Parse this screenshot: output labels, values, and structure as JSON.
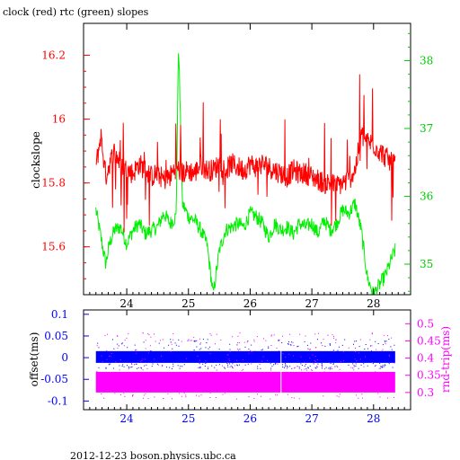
{
  "title": "clock (red) rtc (green) slopes",
  "footer": "2012-12-23 boson.physics.ubc.ca",
  "colors": {
    "clock": "#ff0000",
    "rtc": "#00ee00",
    "offset": "#0000ff",
    "rndtrip": "#ff00ff",
    "axis_left_top": "#ff0000",
    "axis_right_top": "#00cc00",
    "axis_left_bottom": "#0000ff",
    "axis_right_bottom": "#ff00ff"
  },
  "chart_data": [
    {
      "type": "line",
      "title": "clock (red) rtc (green) slopes",
      "xlabel": "",
      "ylabel": "clockslope",
      "y2label": "",
      "xlim": [
        23.3,
        28.6
      ],
      "ylim": [
        15.45,
        16.3
      ],
      "y2lim": [
        34.55,
        38.55
      ],
      "x_ticks": [
        24,
        25,
        26,
        27,
        28
      ],
      "y_ticks": [
        15.6,
        15.8,
        16,
        16.2
      ],
      "y_tick_labels": [
        "15.6",
        "15.8",
        "16",
        "16.2"
      ],
      "y2_ticks": [
        35,
        36,
        37,
        38
      ],
      "y2_tick_labels": [
        "35",
        "36",
        "37",
        "38"
      ],
      "series": [
        {
          "name": "clock",
          "axis": "left",
          "x": [
            23.5,
            23.58,
            23.66,
            23.72,
            23.8,
            23.9,
            24.0,
            24.1,
            24.2,
            24.3,
            24.4,
            24.5,
            24.6,
            24.7,
            24.8,
            24.9,
            25.0,
            25.1,
            25.2,
            25.3,
            25.4,
            25.5,
            25.6,
            25.7,
            25.8,
            25.9,
            26.0,
            26.1,
            26.2,
            26.3,
            26.4,
            26.5,
            26.6,
            26.7,
            26.8,
            26.9,
            27.0,
            27.1,
            27.2,
            27.3,
            27.4,
            27.5,
            27.6,
            27.7,
            27.8,
            27.9,
            28.0,
            28.1,
            28.2,
            28.3,
            28.35
          ],
          "y": [
            15.85,
            15.95,
            15.82,
            15.86,
            15.9,
            15.86,
            15.84,
            15.83,
            15.86,
            15.84,
            15.82,
            15.83,
            15.81,
            15.82,
            15.85,
            15.83,
            15.84,
            15.83,
            15.86,
            15.84,
            15.84,
            15.86,
            15.84,
            15.86,
            15.85,
            15.84,
            15.86,
            15.85,
            15.86,
            15.85,
            15.84,
            15.83,
            15.82,
            15.84,
            15.83,
            15.83,
            15.82,
            15.81,
            15.8,
            15.8,
            15.79,
            15.8,
            15.81,
            15.84,
            15.95,
            15.93,
            15.92,
            15.9,
            15.88,
            15.86,
            15.86
          ]
        },
        {
          "name": "rtc",
          "axis": "right",
          "x": [
            23.5,
            23.58,
            23.66,
            23.72,
            23.8,
            23.9,
            24.0,
            24.1,
            24.2,
            24.3,
            24.4,
            24.5,
            24.6,
            24.7,
            24.8,
            24.84,
            24.9,
            25.0,
            25.1,
            25.2,
            25.3,
            25.4,
            25.5,
            25.6,
            25.7,
            25.8,
            25.9,
            26.0,
            26.1,
            26.2,
            26.3,
            26.4,
            26.5,
            26.6,
            26.7,
            26.8,
            26.9,
            27.0,
            27.1,
            27.2,
            27.3,
            27.4,
            27.5,
            27.6,
            27.7,
            27.8,
            27.9,
            28.0,
            28.1,
            28.2,
            28.3,
            28.35
          ],
          "y": [
            35.8,
            35.4,
            35.0,
            35.3,
            35.5,
            35.55,
            35.3,
            35.5,
            35.6,
            35.45,
            35.5,
            35.55,
            35.75,
            35.6,
            35.7,
            38.3,
            35.9,
            35.7,
            35.65,
            35.5,
            35.3,
            34.55,
            35.2,
            35.5,
            35.55,
            35.6,
            35.55,
            35.75,
            35.7,
            35.6,
            35.4,
            35.6,
            35.5,
            35.55,
            35.45,
            35.6,
            35.55,
            35.6,
            35.45,
            35.65,
            35.5,
            35.6,
            35.8,
            35.75,
            35.9,
            35.5,
            34.8,
            34.55,
            34.7,
            34.85,
            35.1,
            35.2
          ]
        }
      ]
    },
    {
      "type": "scatter",
      "xlabel": "",
      "ylabel": "offset(ms)",
      "y2label": "rnd-trip(ms)",
      "xlim": [
        23.3,
        28.6
      ],
      "ylim": [
        -0.12,
        0.11
      ],
      "y2lim": [
        0.25,
        0.54
      ],
      "x_ticks": [
        24,
        25,
        26,
        27,
        28
      ],
      "y_ticks": [
        -0.1,
        -0.05,
        0,
        0.05,
        0.1
      ],
      "y_tick_labels": [
        "-0.1",
        "-0.05",
        "0",
        "0.05",
        "0.1"
      ],
      "y2_ticks": [
        0.3,
        0.35,
        0.4,
        0.45,
        0.5
      ],
      "y2_tick_labels": [
        "0.3",
        "0.35",
        "0.4",
        "0.45",
        "0.5"
      ],
      "series": [
        {
          "name": "offset",
          "axis": "left",
          "x_range": [
            23.5,
            28.35
          ],
          "center": 0.0,
          "band": [
            -0.012,
            0.015
          ]
        },
        {
          "name": "rnd-trip",
          "axis": "right",
          "x_range": [
            23.5,
            28.35
          ],
          "center": 0.33,
          "band": [
            0.3,
            0.36
          ]
        }
      ]
    }
  ]
}
